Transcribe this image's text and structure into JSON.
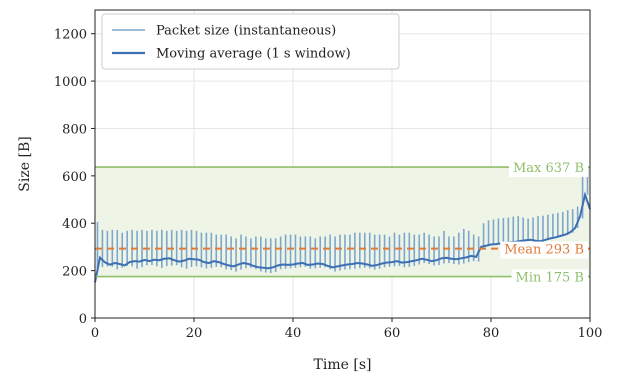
{
  "colors": {
    "instant": "#7ea6cc",
    "average": "#3c6fb4",
    "mean": "#e07b39",
    "minmax": "#8fbf6a",
    "band_fill": "#eef5e6",
    "grid": "#e6e6e6"
  },
  "chart_data": {
    "type": "line",
    "xlabel": "Time [s]",
    "ylabel": "Size [B]",
    "xlim": [
      0,
      100
    ],
    "ylim": [
      0,
      1300
    ],
    "xticks": [
      0,
      20,
      40,
      60,
      80,
      100
    ],
    "yticks": [
      0,
      200,
      400,
      600,
      800,
      1000,
      1200
    ],
    "grid": true,
    "legend_position": "top-left",
    "legend": [
      "Packet size (instantaneous)",
      "Moving average (1 s window)"
    ],
    "annotations": {
      "max": {
        "value": 637,
        "label": "Max 637 B"
      },
      "mean": {
        "value": 293,
        "label": "Mean 293 B"
      },
      "min": {
        "value": 175,
        "label": "Min 175 B"
      }
    },
    "series": [
      {
        "name": "Packet size (instantaneous)",
        "style": "spikes",
        "x": [
          0.5,
          1.5,
          2.5,
          3.5,
          4.5,
          5.5,
          6.5,
          7.5,
          8.5,
          9.5,
          10.5,
          11.5,
          12.5,
          13.5,
          14.5,
          15.5,
          16.5,
          17.5,
          18.5,
          19.5,
          20.5,
          21.5,
          22.5,
          23.5,
          24.5,
          25.5,
          26.5,
          27.5,
          28.5,
          29.5,
          30.5,
          31.5,
          32.5,
          33.5,
          34.5,
          35.5,
          36.5,
          37.5,
          38.5,
          39.5,
          40.5,
          41.5,
          42.5,
          43.5,
          44.5,
          45.5,
          46.5,
          47.5,
          48.5,
          49.5,
          50.5,
          51.5,
          52.5,
          53.5,
          54.5,
          55.5,
          56.5,
          57.5,
          58.5,
          59.5,
          60.5,
          61.5,
          62.5,
          63.5,
          64.5,
          65.5,
          66.5,
          67.5,
          68.5,
          69.5,
          70.5,
          71.5,
          72.5,
          73.5,
          74.5,
          75.5,
          76.5,
          77.5,
          78.5,
          79.5,
          80.5,
          81.5,
          82.5,
          83.5,
          84.5,
          85.5,
          86.5,
          87.5,
          88.5,
          89.5,
          90.5,
          91.5,
          92.5,
          93.5,
          94.5,
          95.5,
          96.5,
          97.5,
          98.5,
          99.5
        ],
        "low": [
          210,
          215,
          218,
          216,
          205,
          212,
          220,
          218,
          208,
          215,
          222,
          224,
          218,
          212,
          219,
          221,
          223,
          214,
          208,
          216,
          218,
          214,
          209,
          212,
          216,
          214,
          205,
          202,
          196,
          204,
          210,
          212,
          206,
          196,
          192,
          190,
          194,
          206,
          208,
          210,
          212,
          214,
          216,
          208,
          210,
          212,
          214,
          206,
          196,
          200,
          204,
          206,
          208,
          210,
          212,
          210,
          204,
          208,
          214,
          216,
          218,
          220,
          214,
          216,
          220,
          226,
          232,
          228,
          222,
          224,
          230,
          232,
          228,
          226,
          230,
          236,
          240,
          238,
          300,
          305,
          310,
          312,
          315,
          318,
          320,
          322,
          325,
          328,
          330,
          325,
          322,
          330,
          335,
          340,
          345,
          350,
          360,
          380,
          420,
          520
        ],
        "high": [
          405,
          372,
          368,
          372,
          372,
          360,
          368,
          372,
          368,
          372,
          368,
          372,
          368,
          372,
          368,
          372,
          368,
          372,
          368,
          372,
          368,
          360,
          360,
          360,
          352,
          352,
          352,
          344,
          336,
          352,
          344,
          336,
          344,
          344,
          336,
          336,
          336,
          344,
          352,
          352,
          352,
          344,
          344,
          344,
          336,
          344,
          344,
          352,
          344,
          352,
          352,
          352,
          360,
          360,
          360,
          360,
          352,
          352,
          352,
          344,
          360,
          352,
          360,
          360,
          352,
          352,
          360,
          352,
          344,
          344,
          368,
          344,
          344,
          360,
          376,
          368,
          352,
          344,
          400,
          412,
          416,
          420,
          422,
          424,
          428,
          430,
          424,
          420,
          424,
          430,
          432,
          436,
          440,
          444,
          448,
          455,
          460,
          470,
          637,
          640
        ]
      },
      {
        "name": "Moving average (1 s window)",
        "style": "line",
        "x": [
          0,
          1,
          2,
          3,
          4,
          5,
          6,
          7,
          8,
          9,
          10,
          11,
          12,
          13,
          14,
          15,
          16,
          17,
          18,
          19,
          20,
          21,
          22,
          23,
          24,
          25,
          26,
          27,
          28,
          29,
          30,
          31,
          32,
          33,
          34,
          35,
          36,
          37,
          38,
          39,
          40,
          41,
          42,
          43,
          44,
          45,
          46,
          47,
          48,
          49,
          50,
          51,
          52,
          53,
          54,
          55,
          56,
          57,
          58,
          59,
          60,
          61,
          62,
          63,
          64,
          65,
          66,
          67,
          68,
          69,
          70,
          71,
          72,
          73,
          74,
          75,
          76,
          77,
          78,
          79,
          80,
          81,
          82,
          83,
          84,
          85,
          86,
          87,
          88,
          89,
          90,
          91,
          92,
          93,
          94,
          95,
          96,
          97,
          98,
          99,
          100
        ],
        "y": [
          150,
          255,
          235,
          225,
          232,
          228,
          222,
          236,
          240,
          238,
          245,
          240,
          246,
          244,
          250,
          252,
          244,
          238,
          242,
          250,
          248,
          246,
          236,
          232,
          240,
          236,
          228,
          222,
          218,
          226,
          232,
          228,
          220,
          214,
          212,
          210,
          214,
          222,
          226,
          224,
          226,
          230,
          232,
          224,
          226,
          230,
          228,
          220,
          214,
          218,
          222,
          226,
          228,
          232,
          230,
          226,
          220,
          224,
          230,
          234,
          236,
          240,
          234,
          236,
          240,
          244,
          250,
          246,
          240,
          244,
          252,
          254,
          250,
          248,
          252,
          256,
          262,
          258,
          300,
          305,
          310,
          312,
          315,
          318,
          320,
          322,
          325,
          328,
          330,
          326,
          324,
          330,
          336,
          340,
          346,
          352,
          362,
          380,
          430,
          520,
          460
        ]
      }
    ]
  }
}
